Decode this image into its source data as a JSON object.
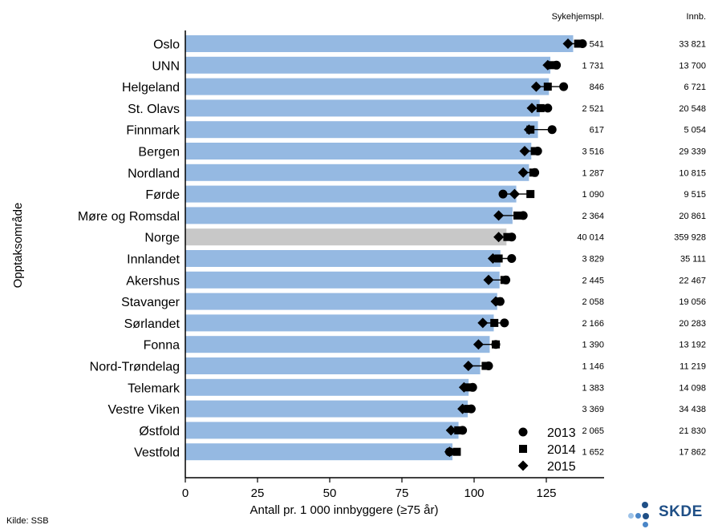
{
  "chart_data": {
    "type": "bar",
    "ylabel": "Opptaksområde",
    "xlabel": "Antall pr. 1 000 innbyggere (≥75 år)",
    "xlim": [
      0,
      145
    ],
    "xticks": [
      0,
      25,
      50,
      75,
      100,
      125
    ],
    "categories": [
      "Oslo",
      "UNN",
      "Helgeland",
      "St. Olavs",
      "Finnmark",
      "Bergen",
      "Nordland",
      "Førde",
      "Møre og Romsdal",
      "Norge",
      "Innlandet",
      "Akershus",
      "Stavanger",
      "Sørlandet",
      "Fonna",
      "Nord-Trøndelag",
      "Telemark",
      "Vestre Viken",
      "Østfold",
      "Vestfold"
    ],
    "highlight_category": "Norge",
    "bar_color": "#95b9e2",
    "highlight_color": "#c8c8c8",
    "values": [
      134.3,
      126.4,
      125.9,
      122.7,
      122.1,
      119.8,
      119.0,
      114.6,
      113.3,
      111.2,
      109.1,
      108.8,
      108.0,
      106.8,
      105.4,
      102.1,
      98.1,
      97.8,
      94.6,
      92.5
    ],
    "series": [
      {
        "name": "2013",
        "marker": "circle",
        "values": [
          137.5,
          128.5,
          131.0,
          125.5,
          127.0,
          122.0,
          121.0,
          110.0,
          117.0,
          113.0,
          113.0,
          111.0,
          109.0,
          110.5,
          107.5,
          105.0,
          99.5,
          99.0,
          96.0,
          91.5
        ]
      },
      {
        "name": "2014",
        "marker": "square",
        "values": [
          136.0,
          127.0,
          125.5,
          123.0,
          119.5,
          121.0,
          120.5,
          119.5,
          115.0,
          111.5,
          108.5,
          110.5,
          108.5,
          107.0,
          107.5,
          104.0,
          97.5,
          98.0,
          94.5,
          94.0
        ]
      },
      {
        "name": "2015",
        "marker": "diamond",
        "values": [
          132.5,
          125.5,
          121.5,
          120.0,
          119.0,
          117.5,
          117.0,
          114.0,
          108.5,
          108.5,
          106.5,
          105.0,
          107.5,
          103.0,
          101.5,
          98.0,
          96.5,
          96.0,
          92.0,
          91.5
        ]
      }
    ],
    "columns": {
      "headers": [
        "Sykehjemspl.",
        "Innb."
      ],
      "rows": [
        [
          "4 541",
          "33 821"
        ],
        [
          "1 731",
          "13 700"
        ],
        [
          "846",
          "6 721"
        ],
        [
          "2 521",
          "20 548"
        ],
        [
          "617",
          "5 054"
        ],
        [
          "3 516",
          "29 339"
        ],
        [
          "1 287",
          "10 815"
        ],
        [
          "1 090",
          "9 515"
        ],
        [
          "2 364",
          "20 861"
        ],
        [
          "40 014",
          "359 928"
        ],
        [
          "3 829",
          "35 111"
        ],
        [
          "2 445",
          "22 467"
        ],
        [
          "2 058",
          "19 056"
        ],
        [
          "2 166",
          "20 283"
        ],
        [
          "1 390",
          "13 192"
        ],
        [
          "1 146",
          "11 219"
        ],
        [
          "1 383",
          "14 098"
        ],
        [
          "3 369",
          "34 438"
        ],
        [
          "2 065",
          "21 830"
        ],
        [
          "1 652",
          "17 862"
        ]
      ]
    },
    "legend_position": "bottom-right"
  },
  "source": "Kilde: SSB",
  "logo": {
    "text": "SKDE",
    "color": "#1f4f86",
    "dot_light": "#4a86c8"
  }
}
